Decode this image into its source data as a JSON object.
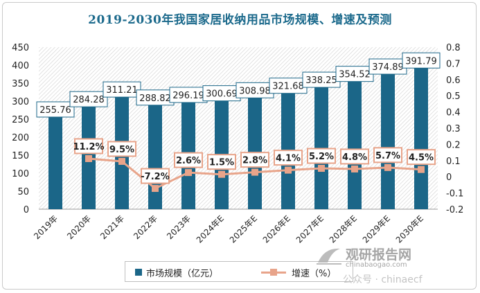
{
  "chart_data": {
    "type": "bar+line",
    "title": "2019-2030年我国家居收纳用品市场规模、增速及预测",
    "categories": [
      "2019年",
      "2020年",
      "2021年",
      "2022年",
      "2023年",
      "2024年E",
      "2025年E",
      "2026年E",
      "2027年E",
      "2028年E",
      "2029年E",
      "2030年E"
    ],
    "series": [
      {
        "name": "市场规模（亿元）",
        "type": "bar",
        "axis": "left",
        "color": "#1b6688",
        "values": [
          255.76,
          284.28,
          311.21,
          288.82,
          296.19,
          300.69,
          308.98,
          321.68,
          338.25,
          354.52,
          374.89,
          391.79
        ],
        "labels": [
          "255.76",
          "284.28",
          "311.21",
          "288.82",
          "296.19",
          "300.69",
          "308.98",
          "321.68",
          "338.25",
          "354.52",
          "374.89",
          "391.79"
        ]
      },
      {
        "name": "增速（%）",
        "type": "line",
        "axis": "right",
        "color": "#e8a48a",
        "values": [
          null,
          0.112,
          0.095,
          -0.072,
          0.026,
          0.015,
          0.028,
          0.041,
          0.052,
          0.048,
          0.057,
          0.045
        ],
        "labels": [
          null,
          "11.2%",
          "9.5%",
          "-7.2%",
          "2.6%",
          "1.5%",
          "2.8%",
          "4.1%",
          "5.2%",
          "4.8%",
          "5.7%",
          "4.5%"
        ]
      }
    ],
    "y_left": {
      "min": 0,
      "max": 450,
      "ticks": [
        "0",
        "50",
        "100",
        "150",
        "200",
        "250",
        "300",
        "350",
        "400",
        "450"
      ]
    },
    "y_right": {
      "min": -0.2,
      "max": 0.8,
      "ticks": [
        "-0.2",
        "-0.1",
        "0",
        "0.1",
        "0.2",
        "0.3",
        "0.4",
        "0.5",
        "0.6",
        "0.7",
        "0.8"
      ]
    },
    "legend_position": "bottom"
  },
  "legend": {
    "bar_label": "市场规模（亿元）",
    "line_label": "增速（%）"
  },
  "watermark": {
    "brand": "观研报告网",
    "site": "chinabaogao.com",
    "account": "公众号 · chinaecf"
  }
}
